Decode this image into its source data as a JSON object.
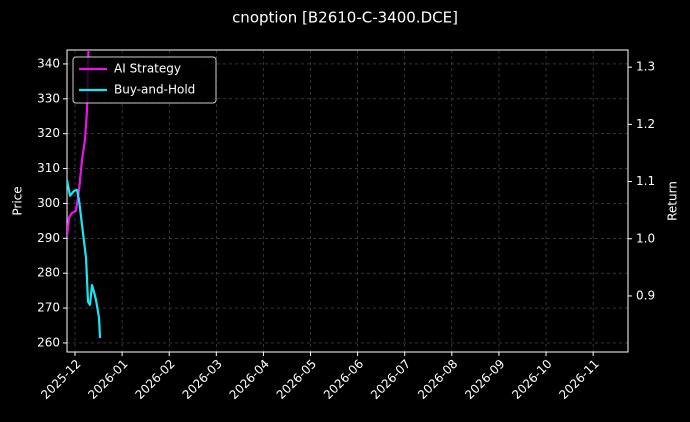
{
  "chart_data": {
    "type": "line",
    "title": "cnoption [B2610-C-3400.DCE]",
    "ylabel": "Price",
    "y2label": "Return",
    "xlim": [
      -0.17,
      11.74
    ],
    "xticks": [
      {
        "value": 0,
        "label": "2025-12"
      },
      {
        "value": 1,
        "label": "2026-01"
      },
      {
        "value": 2,
        "label": "2026-02"
      },
      {
        "value": 3,
        "label": "2026-03"
      },
      {
        "value": 4,
        "label": "2026-04"
      },
      {
        "value": 5,
        "label": "2026-05"
      },
      {
        "value": 6,
        "label": "2026-06"
      },
      {
        "value": 7,
        "label": "2026-07"
      },
      {
        "value": 8,
        "label": "2026-08"
      },
      {
        "value": 9,
        "label": "2026-09"
      },
      {
        "value": 10,
        "label": "2026-10"
      },
      {
        "value": 11,
        "label": "2026-11"
      }
    ],
    "ylim": [
      257.4,
      344
    ],
    "yticks": [
      260,
      270,
      280,
      290,
      300,
      310,
      320,
      330,
      340
    ],
    "y2lim": [
      0.802,
      1.33
    ],
    "y2ticks": [
      0.9,
      {
        "value": 1,
        "label": "1.0"
      },
      1.1,
      1.2,
      1.3
    ],
    "grid": true,
    "legend": "upper left",
    "series": [
      {
        "name": "AI Strategy",
        "color": "#e815e8",
        "axis": "y2",
        "x": [
          -0.17,
          -0.127,
          -0.064,
          0.021,
          0.085,
          0.149,
          0.212,
          0.255,
          0.276,
          0.297
        ],
        "values": [
          1.003,
          1.037,
          1.045,
          1.049,
          1.085,
          1.138,
          1.173,
          1.225,
          1.305,
          1.36
        ]
      },
      {
        "name": "Buy-and-Hold",
        "color": "#19e6f0",
        "x": [
          -0.17,
          -0.106,
          -0.021,
          0.042,
          0.085,
          0.149,
          0.234,
          0.276,
          0.318,
          0.361,
          0.403,
          0.446,
          0.51,
          0.531
        ],
        "values": [
          306.7,
          302.2,
          303.6,
          303.9,
          301.0,
          293.8,
          284.4,
          271.8,
          270.9,
          276.6,
          274.6,
          272.3,
          267.2,
          261.4
        ]
      }
    ]
  }
}
